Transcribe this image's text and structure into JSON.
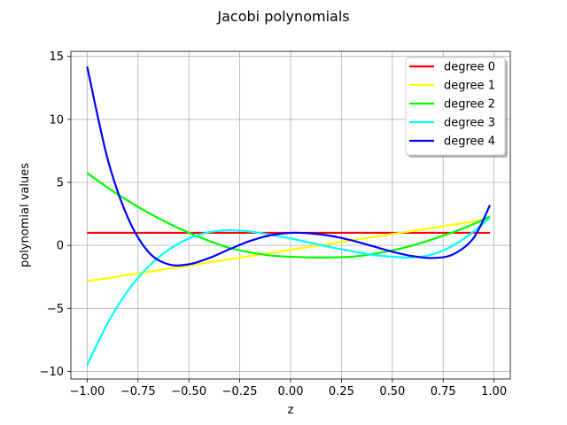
{
  "chart_data": {
    "type": "line",
    "title": "Jacobi polynomials",
    "xlabel": "z",
    "ylabel": "polynomial values",
    "xlim": [
      -1.08,
      1.08
    ],
    "ylim": [
      -10.6,
      15.4
    ],
    "grid": true,
    "legend_position": "top-right",
    "xticks": [
      {
        "value": -1.0,
        "label": "−1.00"
      },
      {
        "value": -0.75,
        "label": "−0.75"
      },
      {
        "value": -0.5,
        "label": "−0.50"
      },
      {
        "value": -0.25,
        "label": "−0.25"
      },
      {
        "value": 0.0,
        "label": "0.00"
      },
      {
        "value": 0.25,
        "label": "0.25"
      },
      {
        "value": 0.5,
        "label": "0.50"
      },
      {
        "value": 0.75,
        "label": "0.75"
      },
      {
        "value": 1.0,
        "label": "1.00"
      }
    ],
    "yticks": [
      {
        "value": -10,
        "label": "−10"
      },
      {
        "value": -5,
        "label": "−5"
      },
      {
        "value": 0,
        "label": "0"
      },
      {
        "value": 5,
        "label": "5"
      },
      {
        "value": 10,
        "label": "10"
      },
      {
        "value": 15,
        "label": "15"
      }
    ],
    "x": [
      -1.0,
      -0.9,
      -0.8,
      -0.7,
      -0.6,
      -0.5,
      -0.4,
      -0.3,
      -0.2,
      -0.1,
      0.0,
      0.1,
      0.2,
      0.3,
      0.4,
      0.5,
      0.6,
      0.7,
      0.8,
      0.9,
      0.98
    ],
    "series": [
      {
        "name": "degree 0",
        "color": "#ff0000",
        "values": [
          1.0,
          1.0,
          1.0,
          1.0,
          1.0,
          1.0,
          1.0,
          1.0,
          1.0,
          1.0,
          1.0,
          1.0,
          1.0,
          1.0,
          1.0,
          1.0,
          1.0,
          1.0,
          1.0,
          1.0,
          1.0
        ]
      },
      {
        "name": "degree 1",
        "color": "#ffff00",
        "values": [
          -2.85,
          -2.6,
          -2.35,
          -2.1,
          -1.85,
          -1.6,
          -1.35,
          -1.1,
          -0.85,
          -0.6,
          -0.35,
          -0.1,
          0.15,
          0.4,
          0.65,
          0.9,
          1.15,
          1.4,
          1.65,
          1.9,
          2.1
        ]
      },
      {
        "name": "degree 2",
        "color": "#00ff00",
        "values": [
          5.75,
          4.6,
          3.55,
          2.6,
          1.75,
          1.0,
          0.35,
          -0.2,
          -0.55,
          -0.8,
          -0.9,
          -0.95,
          -0.95,
          -0.9,
          -0.7,
          -0.4,
          0.0,
          0.5,
          1.05,
          1.7,
          2.3
        ]
      },
      {
        "name": "degree 3",
        "color": "#00ffff",
        "values": [
          -9.5,
          -6.2,
          -3.6,
          -1.7,
          -0.35,
          0.55,
          1.05,
          1.2,
          1.1,
          0.85,
          0.55,
          0.2,
          -0.15,
          -0.45,
          -0.75,
          -0.9,
          -0.95,
          -0.7,
          0.0,
          1.1,
          2.2
        ]
      },
      {
        "name": "degree 4",
        "color": "#0000ff",
        "values": [
          14.2,
          6.9,
          2.2,
          -0.5,
          -1.5,
          -1.5,
          -1.0,
          -0.3,
          0.35,
          0.8,
          1.0,
          0.95,
          0.75,
          0.4,
          -0.05,
          -0.5,
          -0.85,
          -1.0,
          -0.7,
          0.6,
          3.2
        ]
      }
    ]
  }
}
